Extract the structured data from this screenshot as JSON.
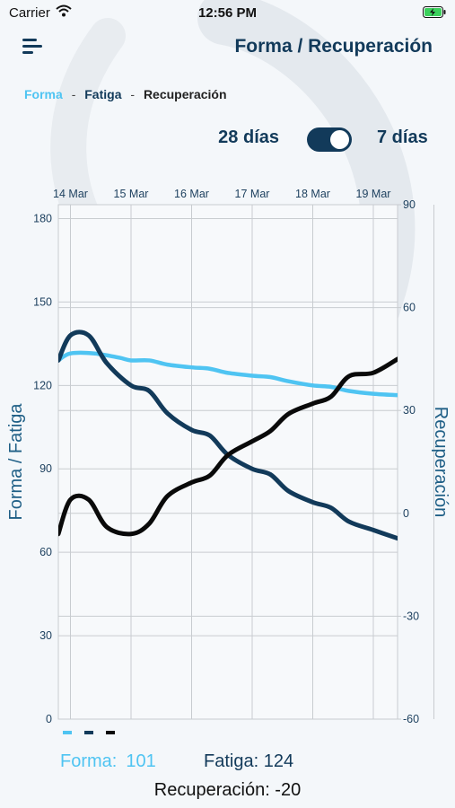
{
  "status": {
    "carrier": "Carrier",
    "time": "12:56 PM"
  },
  "header": {
    "title": "Forma / Recuperación"
  },
  "legend": {
    "forma": "Forma",
    "fatiga": "Fatiga",
    "recuperacion": "Recuperación",
    "separator": "-"
  },
  "range": {
    "option_28": "28 días",
    "option_7": "7 días",
    "selected": "7 días"
  },
  "colors": {
    "forma": "#4fc4f2",
    "fatiga": "#123a5a",
    "recuperacion": "#0a0a0a",
    "grid": "#c8ccd0",
    "axis_text": "#1f4260"
  },
  "chart_data": {
    "type": "line",
    "categories": [
      "14 Mar",
      "15 Mar",
      "16 Mar",
      "17 Mar",
      "18 Mar",
      "19 Mar"
    ],
    "x_range": [
      13.8,
      19.4
    ],
    "y_left": {
      "label": "Forma / Fatiga",
      "ylim": [
        0,
        185
      ],
      "ticks": [
        0,
        30,
        60,
        90,
        120,
        150,
        180
      ]
    },
    "y_right": {
      "label": "Recuperación",
      "ylim": [
        -60,
        90
      ],
      "ticks": [
        -60,
        -30,
        0,
        30,
        60,
        90
      ]
    },
    "grid": true,
    "series": [
      {
        "key": "forma",
        "axis": "left",
        "x": [
          13.8,
          14.0,
          14.4,
          14.8,
          15.0,
          15.3,
          15.6,
          16.0,
          16.3,
          16.6,
          17.0,
          17.3,
          17.6,
          18.0,
          18.3,
          18.6,
          19.0,
          19.4
        ],
        "values": [
          129,
          131.5,
          131.5,
          130,
          129,
          129,
          127.5,
          126.5,
          126,
          124.5,
          123.5,
          123,
          121.5,
          120,
          119.5,
          118,
          117,
          116.5
        ]
      },
      {
        "key": "fatiga",
        "axis": "left",
        "x": [
          13.8,
          14.0,
          14.3,
          14.6,
          15.0,
          15.3,
          15.6,
          16.0,
          16.3,
          16.6,
          17.0,
          17.3,
          17.6,
          18.0,
          18.3,
          18.6,
          19.0,
          19.4
        ],
        "values": [
          129,
          138,
          138,
          128,
          120,
          118,
          110,
          104,
          102,
          95,
          90,
          88,
          82,
          78,
          76,
          71,
          68,
          65
        ]
      },
      {
        "key": "recuperacion",
        "axis": "right",
        "x": [
          13.8,
          14.0,
          14.3,
          14.6,
          15.0,
          15.3,
          15.6,
          16.0,
          16.3,
          16.6,
          17.0,
          17.3,
          17.6,
          18.0,
          18.3,
          18.6,
          19.0,
          19.4
        ],
        "values": [
          -6,
          4,
          4,
          -4,
          -6,
          -3,
          5,
          9,
          11,
          17,
          21,
          24,
          29,
          32,
          34,
          40,
          41,
          45
        ]
      }
    ]
  },
  "summary": {
    "forma_label": "Forma:",
    "forma_value": "101",
    "fatiga_text": "Fatiga: 124",
    "recuperacion_text": "Recuperación: -20"
  }
}
